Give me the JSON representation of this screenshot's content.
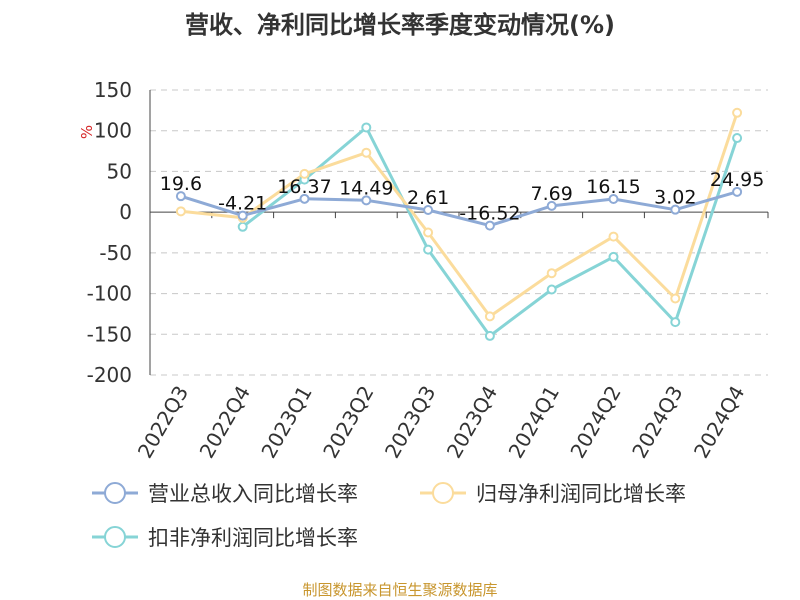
{
  "chart_data": {
    "type": "line",
    "title": "营收、净利同比增长率季度变动情况(%)",
    "ylabel": "%",
    "ylim": [
      -200,
      150
    ],
    "yticks": [
      150,
      100,
      50,
      0,
      -50,
      -100,
      -150,
      -200
    ],
    "grid": true,
    "categories": [
      "2022Q3",
      "2022Q4",
      "2023Q1",
      "2023Q2",
      "2023Q3",
      "2023Q4",
      "2024Q1",
      "2024Q2",
      "2024Q3",
      "2024Q4"
    ],
    "series": [
      {
        "name": "营业总收入同比增长率",
        "color": "#8eaad6",
        "values": [
          19.6,
          -4.21,
          16.37,
          14.49,
          2.61,
          -16.52,
          7.69,
          16.15,
          3.02,
          24.95
        ],
        "labels": [
          "19.6",
          "-4.21",
          "16.37",
          "14.49",
          "2.61",
          "-16.52",
          "7.69",
          "16.15",
          "3.02",
          "24.95"
        ]
      },
      {
        "name": "归母净利润同比增长率",
        "color": "#fbdc9c",
        "values": [
          1,
          -7,
          47,
          73,
          -25,
          -128,
          -75,
          -30,
          -106,
          122
        ]
      },
      {
        "name": "扣非净利润同比增长率",
        "color": "#86d4d6",
        "values": [
          null,
          -18,
          40,
          104,
          -46,
          -152,
          -95,
          -55,
          -135,
          91
        ]
      }
    ],
    "legend_position": "bottom"
  },
  "source": "制图数据来自恒生聚源数据库"
}
